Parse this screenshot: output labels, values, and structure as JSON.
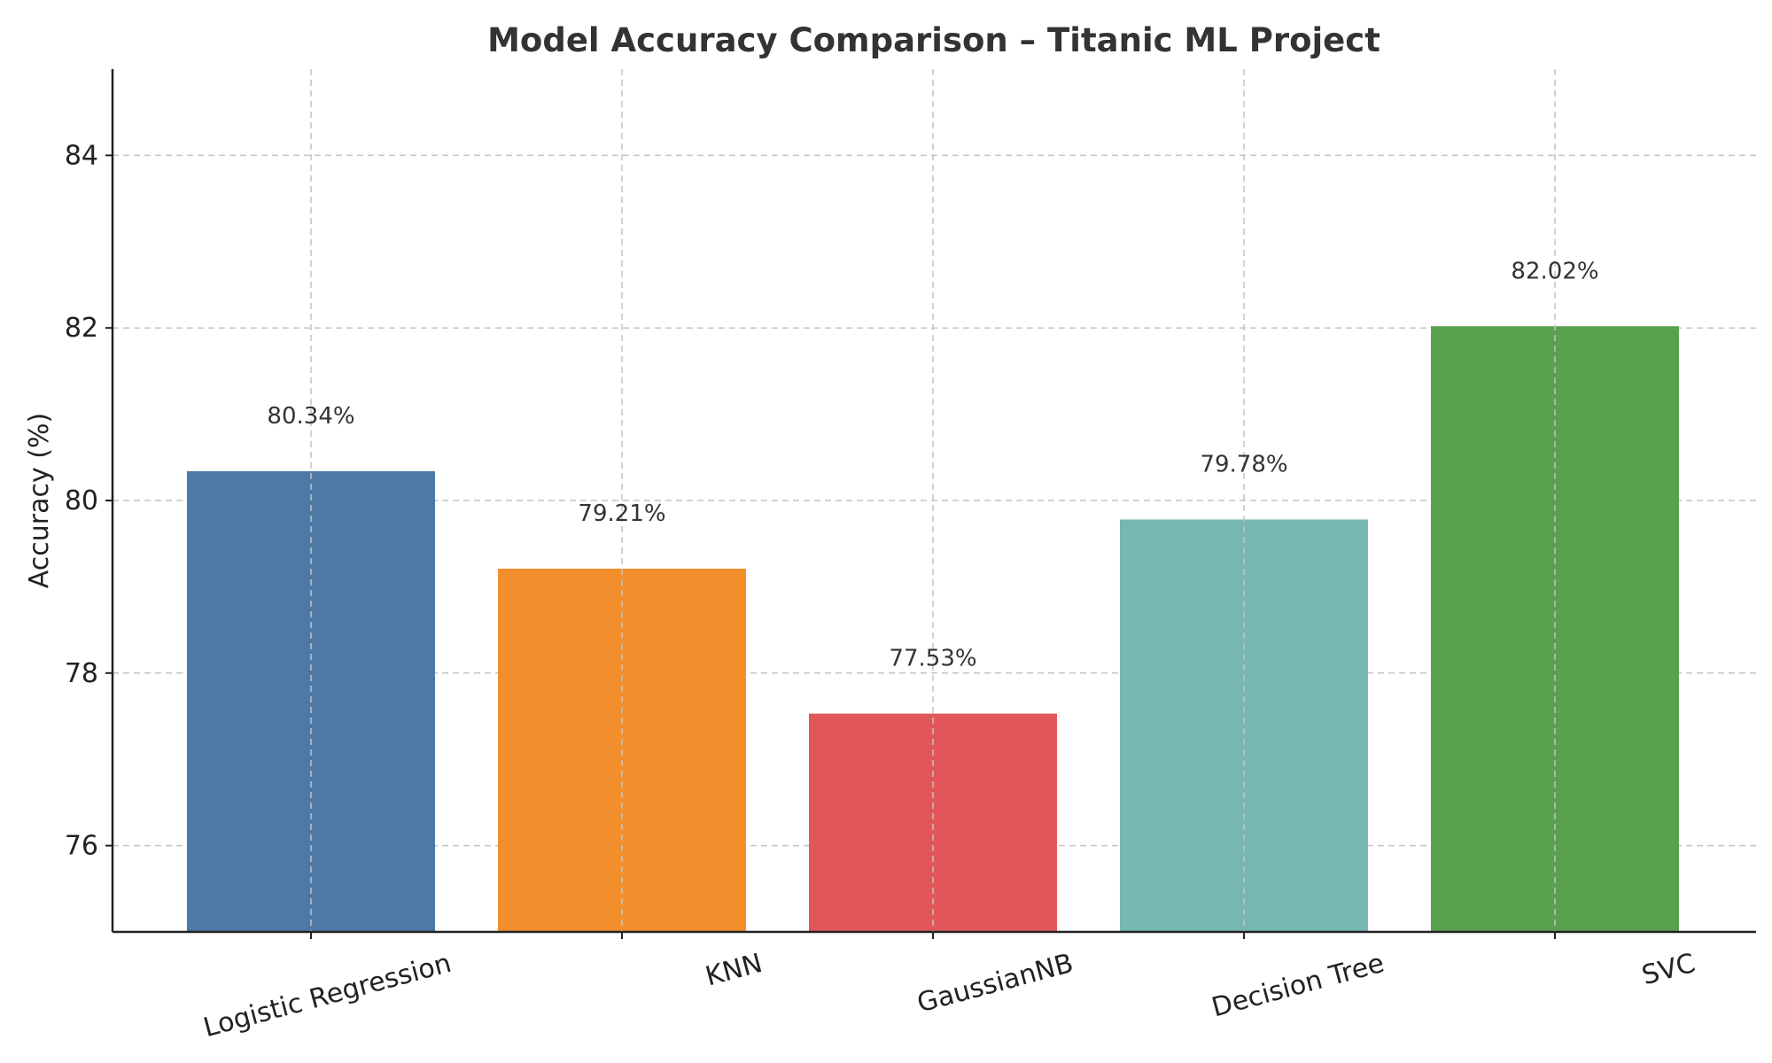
{
  "chart_data": {
    "type": "bar",
    "title": "Model Accuracy Comparison – Titanic ML Project",
    "xlabel": "",
    "ylabel": "Accuracy (%)",
    "categories": [
      "Logistic Regression",
      "KNN",
      "GaussianNB",
      "Decision Tree",
      "SVC"
    ],
    "values": [
      80.34,
      79.21,
      77.53,
      79.78,
      82.02
    ],
    "data_labels": [
      "80.34%",
      "79.21%",
      "77.53%",
      "79.78%",
      "82.02%"
    ],
    "colors": [
      "#4e79a7",
      "#f28e2b",
      "#e15759",
      "#76b7b2",
      "#59a14f"
    ],
    "ylim": [
      75,
      85
    ],
    "yticks": [
      76,
      78,
      80,
      82,
      84
    ],
    "grid": true,
    "legend": "none"
  }
}
